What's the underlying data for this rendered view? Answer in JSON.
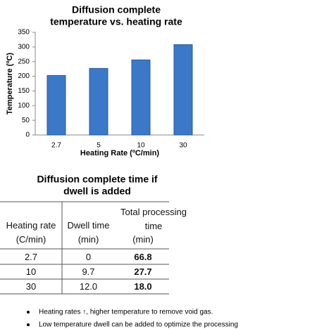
{
  "chart_data": {
    "type": "bar",
    "title": [
      "Diffusion complete",
      "temperature vs. heating rate"
    ],
    "y_label": "Temperature (ºC)",
    "x_label": "Heating Rate (ºC/min)",
    "categories": [
      "2.7",
      "5",
      "10",
      "30"
    ],
    "values": [
      203,
      227,
      256,
      308
    ],
    "color": "#3b78c8",
    "ylim": [
      0,
      350
    ],
    "yticks": [
      0,
      50,
      100,
      150,
      200,
      250,
      300,
      350
    ],
    "grid": false
  },
  "table": {
    "title": [
      "Diffusion complete time if",
      "dwell is added"
    ],
    "header": [
      [
        "Heating rate",
        "(C/min)"
      ],
      [
        "Dwell time",
        "(min)"
      ],
      [
        "Total processing time",
        "(min)"
      ]
    ],
    "rows": [
      [
        "2.7",
        "0",
        "66.8"
      ],
      [
        "10",
        "9.7",
        "27.7"
      ],
      [
        "30",
        "12.0",
        "18.0"
      ]
    ]
  },
  "bullets": [
    "Heating rates ↑, higher temperature to remove void gas.",
    "Low temperature dwell can be added to optimize the processing"
  ]
}
